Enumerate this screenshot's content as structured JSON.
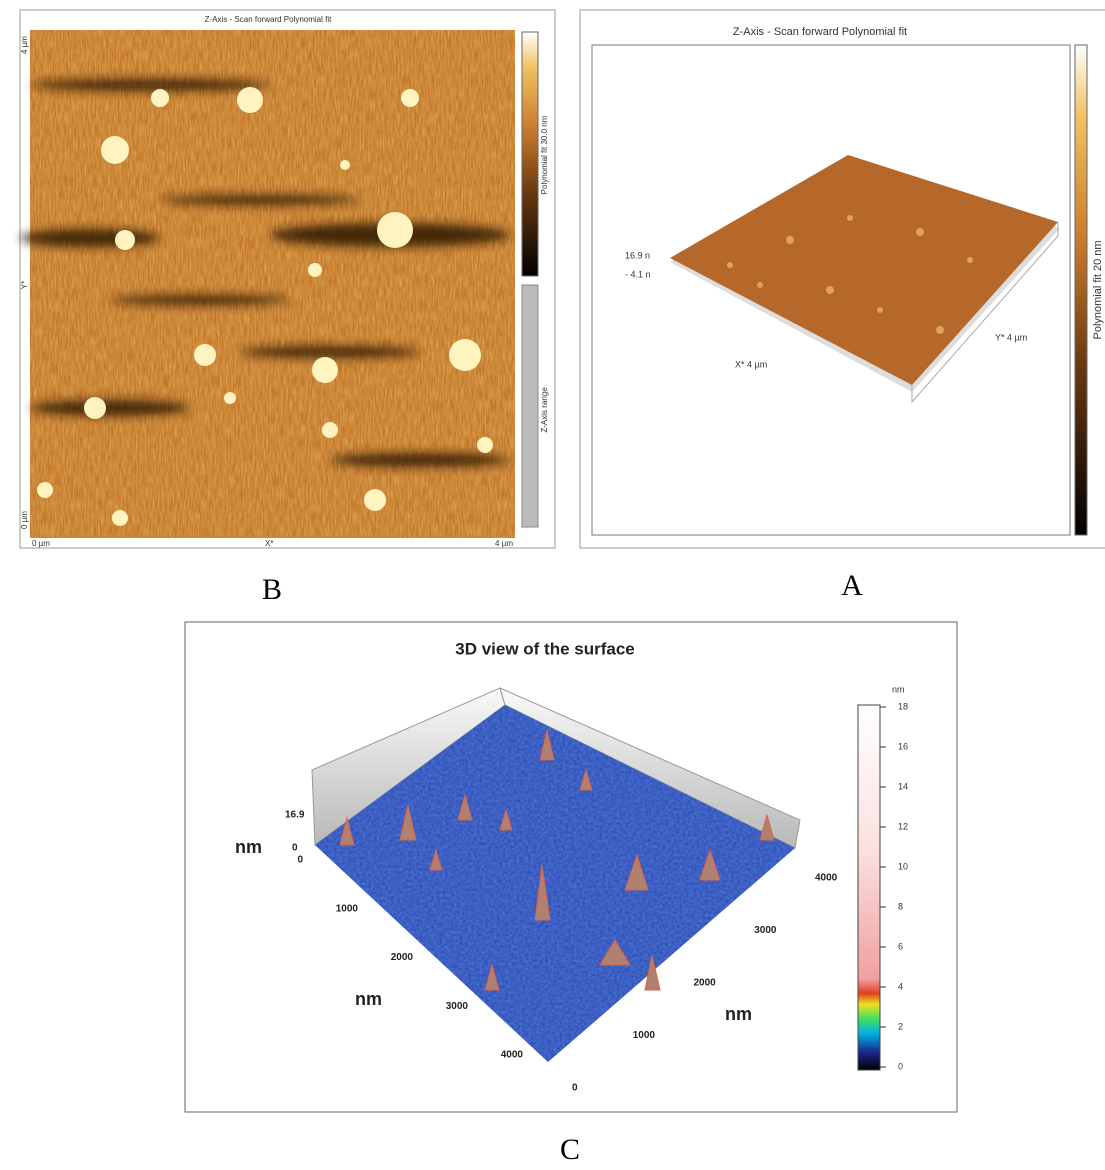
{
  "panels": [
    {
      "caption": "B",
      "title": "Z-Axis - Scan forward   Polynomial fit",
      "y_axis_top": "4 µm",
      "y_axis_label": "Y*",
      "y_axis_bottom": "0 µm",
      "x_axis_left": "0 µm",
      "x_axis_label": "X*",
      "x_axis_right": "4 µm",
      "colorbar_label": "Polynomial fit 30.0 nm",
      "range_label": "Z-Axis range"
    },
    {
      "caption": "A",
      "title": "Z-Axis - Scan forward   Polynomial fit",
      "z_top": "16.9 n",
      "z_bottom": "- 4.1 n",
      "x_label": "X* 4 µm",
      "y_label": "Y* 4 µm",
      "colorbar_label": "Polynomial fit 20 nm"
    },
    {
      "caption": "C",
      "title": "3D view of the surface",
      "z_top": "16.9",
      "z_bottom": "0",
      "z_unit": "nm",
      "left_ticks": [
        "0",
        "1000",
        "2000",
        "3000",
        "4000"
      ],
      "left_unit": "nm",
      "right_ticks": [
        "0",
        "1000",
        "2000",
        "3000",
        "4000"
      ],
      "right_unit": "nm",
      "colorbar_unit": "nm",
      "colorbar_ticks": [
        "0",
        "2",
        "4",
        "6",
        "8",
        "10",
        "12",
        "14",
        "16",
        "18"
      ]
    }
  ]
}
